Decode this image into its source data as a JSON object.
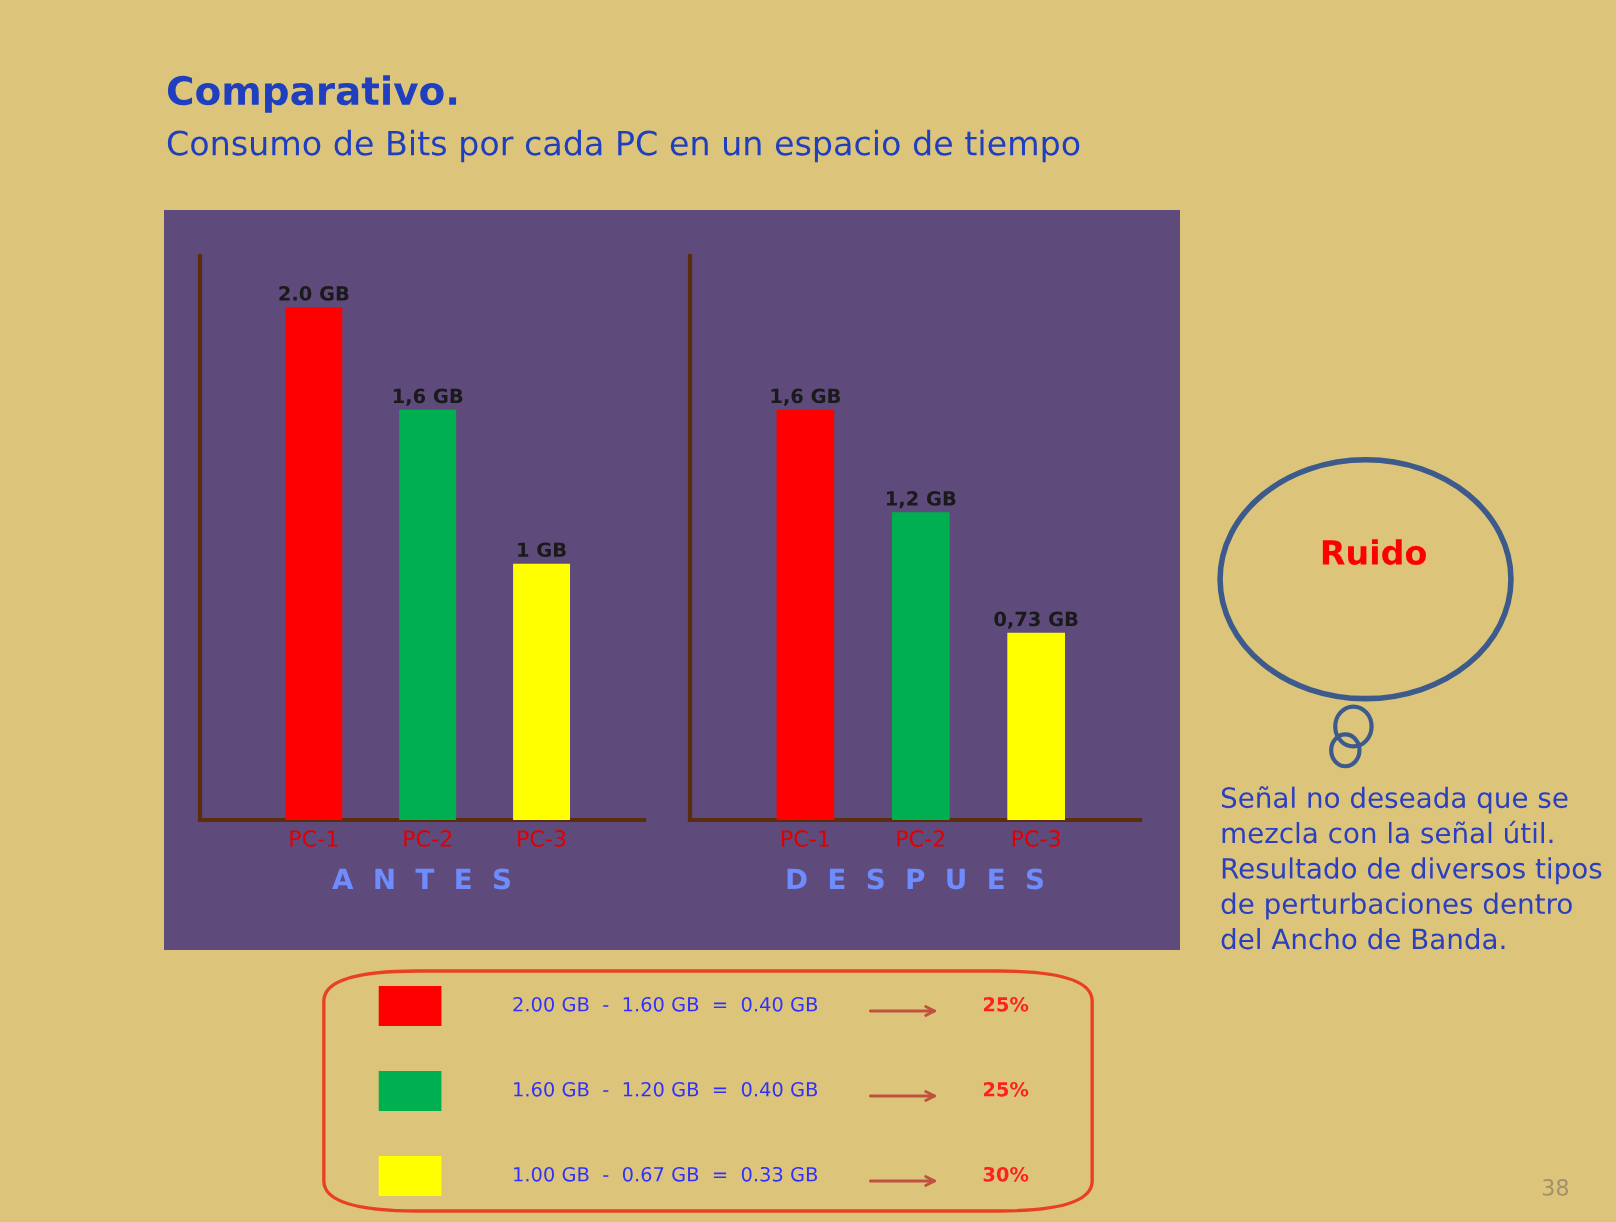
{
  "chart_data": [
    {
      "type": "bar",
      "title": "Comparativo.",
      "subtitle": "Consumo de Bits por cada PC en un espacio de tiempo",
      "xlabel": "A  N  T  E  S",
      "categories": [
        "PC-1",
        "PC-2",
        "PC-3"
      ],
      "colors": [
        "#ff0000",
        "#00b050",
        "#ffff00"
      ],
      "values": [
        2.0,
        1.6,
        1.0
      ],
      "value_labels": [
        "2.0 GB",
        "1,6 GB",
        "1 GB"
      ]
    },
    {
      "type": "bar",
      "xlabel": "D  E  S  P  U  E  S",
      "categories": [
        "PC-1",
        "PC-2",
        "PC-3"
      ],
      "colors": [
        "#ff0000",
        "#00b050",
        "#ffff00"
      ],
      "values": [
        1.6,
        1.2,
        0.73
      ],
      "value_labels": [
        "1,6 GB",
        "1,2 GB",
        "0,73 GB"
      ]
    },
    {
      "type": "other",
      "colors": [
        "#ff0000",
        "#00b050",
        "#ffff00"
      ],
      "annotations": [
        "2.00 GB  -  1.60 GB  =  0.40 GB",
        "25%",
        "1.60 GB  -  1.20 GB  =  0.40 GB",
        "25%",
        "1.00 GB  -  0.67 GB  =  0.33 GB",
        "30%"
      ]
    },
    {
      "type": "other",
      "annotations": [
        "Ruido",
        "Señal no deseada que se\nmezcla con la señal útil.\nResultado de diversos tipos\nde perturbaciones dentro\ndel Ancho de Banda.",
        "38"
      ]
    }
  ]
}
